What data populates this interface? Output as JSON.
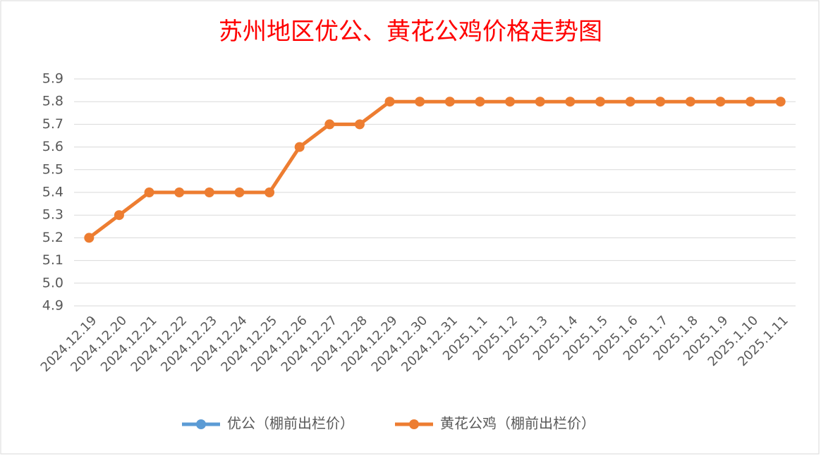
{
  "chart_data": {
    "type": "line",
    "title": "苏州地区优公、黄花公鸡价格走势图",
    "categories": [
      "2024.12.19",
      "2024.12.20",
      "2024.12.21",
      "2024.12.22",
      "2024.12.23",
      "2024.12.24",
      "2024.12.25",
      "2024.12.26",
      "2024.12.27",
      "2024.12.28",
      "2024.12.29",
      "2024.12.30",
      "2024.12.31",
      "2025.1.1",
      "2025.1.2",
      "2025.1.3",
      "2025.1.4",
      "2025.1.5",
      "2025.1.6",
      "2025.1.7",
      "2025.1.8",
      "2025.1.9",
      "2025.1.10",
      "2025.1.11"
    ],
    "series": [
      {
        "name": "优公（棚前出栏价）",
        "color": "#5b9bd5",
        "values": [
          null,
          null,
          null,
          null,
          null,
          null,
          null,
          null,
          null,
          null,
          null,
          null,
          null,
          null,
          null,
          null,
          null,
          null,
          null,
          null,
          null,
          null,
          null,
          null
        ]
      },
      {
        "name": "黄花公鸡（棚前出栏价）",
        "color": "#ed7d31",
        "values": [
          5.2,
          5.3,
          5.4,
          5.4,
          5.4,
          5.4,
          5.4,
          5.6,
          5.7,
          5.7,
          5.8,
          5.8,
          5.8,
          5.8,
          5.8,
          5.8,
          5.8,
          5.8,
          5.8,
          5.8,
          5.8,
          5.8,
          5.8,
          5.8
        ]
      }
    ],
    "ylim": [
      4.9,
      5.9
    ],
    "yticks": [
      4.9,
      {
        "value": 5.0,
        "label": "5.0"
      },
      5.1,
      5.2,
      5.3,
      5.4,
      5.5,
      5.6,
      5.7,
      5.8,
      5.9
    ],
    "grid": true,
    "legend": "bottom"
  }
}
